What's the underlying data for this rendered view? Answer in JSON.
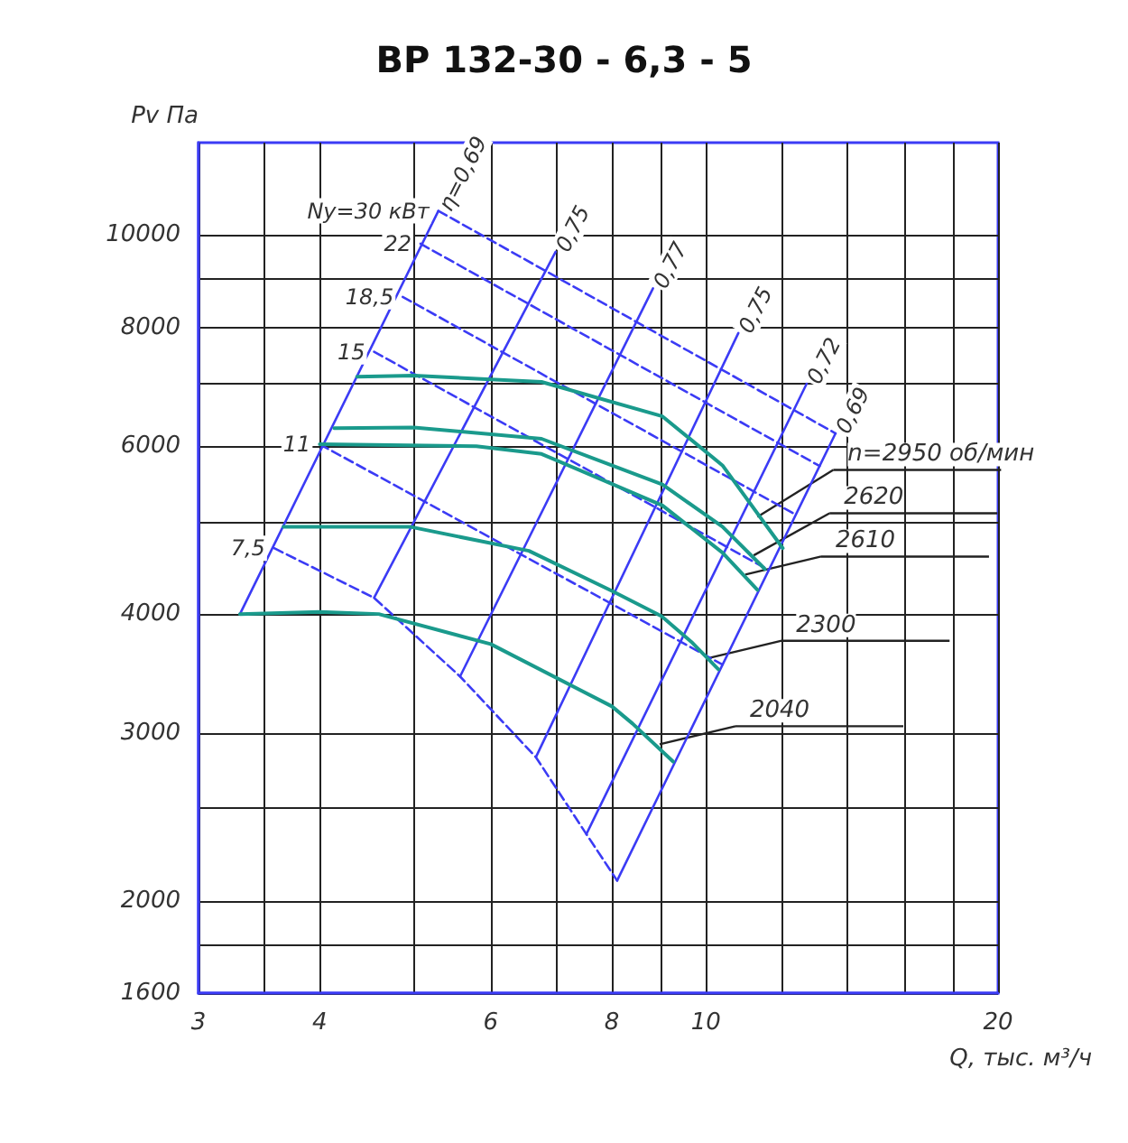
{
  "chart_data": {
    "type": "line",
    "title": "ВР 132-30 - 6,3 - 5",
    "xlabel": "Q, тыс. м³/ч",
    "ylabel": "Pv Па",
    "log": "xy",
    "grid": true,
    "xlim": [
      3,
      20
    ],
    "xticks": [
      3,
      {
        "value": 3.5,
        "label": null
      },
      4,
      {
        "value": 5,
        "label": null
      },
      6,
      {
        "value": 7,
        "label": null
      },
      8,
      {
        "value": 9,
        "label": null
      },
      10,
      {
        "value": 12,
        "label": null
      },
      {
        "value": 14,
        "label": null
      },
      {
        "value": 16,
        "label": null
      },
      {
        "value": 18,
        "label": null
      },
      20
    ],
    "ylim": [
      1600,
      12500
    ],
    "yticks": [
      1600,
      {
        "value": 1800,
        "label": null
      },
      2000,
      {
        "value": 2500,
        "label": null
      },
      3000,
      4000,
      {
        "value": 5000,
        "label": null
      },
      6000,
      {
        "value": 7000,
        "label": null
      },
      8000,
      {
        "value": 9000,
        "label": null
      },
      10000
    ],
    "series": [
      {
        "color": "#1a9a8c",
        "x": [
          4.37,
          5.0,
          6.77,
          9.02,
          10.4,
          12.0
        ],
        "values": [
          7100,
          7120,
          7010,
          6450,
          5730,
          4690
        ]
      },
      {
        "color": "#1a9a8c",
        "x": [
          4.14,
          5.0,
          6.77,
          9.02,
          10.4,
          11.5
        ],
        "values": [
          6270,
          6280,
          6110,
          5470,
          4940,
          4460
        ]
      },
      {
        "color": "#1a9a8c",
        "x": [
          4.0,
          5.8,
          6.77,
          9.02,
          10.4,
          11.3
        ],
        "values": [
          6030,
          6000,
          5890,
          5200,
          4640,
          4240
        ]
      },
      {
        "color": "#1a9a8c",
        "x": [
          3.67,
          4.95,
          6.57,
          8.0,
          9.0,
          9.66,
          10.3
        ],
        "values": [
          4940,
          4940,
          4660,
          4230,
          3980,
          3740,
          3500
        ]
      },
      {
        "color": "#1a9a8c",
        "x": [
          3.31,
          4.0,
          4.6,
          6.0,
          8.0,
          8.4,
          9.25
        ],
        "values": [
          4000,
          4020,
          4000,
          3720,
          3200,
          3070,
          2800
        ]
      },
      {
        "name": "η=0,69",
        "color": "#3b3bf5",
        "line_style": "solid",
        "x": [
          3.31,
          5.3
        ],
        "values": [
          4000,
          10600
        ]
      },
      {
        "name": "0,75",
        "color": "#3b3bf5",
        "line_style": "solid",
        "x": [
          4.55,
          7.0
        ],
        "values": [
          4160,
          9600
        ]
      },
      {
        "name": "0,77",
        "color": "#3b3bf5",
        "line_style": "solid",
        "x": [
          5.58,
          8.82
        ],
        "values": [
          3440,
          8790
        ]
      },
      {
        "name": "0,75",
        "color": "#3b3bf5",
        "line_style": "solid",
        "x": [
          6.68,
          10.8
        ],
        "values": [
          2830,
          7890
        ]
      },
      {
        "name": "0,72",
        "color": "#3b3bf5",
        "line_style": "solid",
        "x": [
          7.53,
          12.7
        ],
        "values": [
          2350,
          6980
        ]
      },
      {
        "name": "0,69",
        "color": "#3b3bf5",
        "line_style": "solid",
        "x": [
          8.1,
          13.6
        ],
        "values": [
          2100,
          6190
        ]
      },
      {
        "name": "Nу=30 кВт",
        "color": "#3b3bf5",
        "line_style": "dashed",
        "x": [
          5.3,
          13.6
        ],
        "values": [
          10600,
          6190
        ]
      },
      {
        "name": "22",
        "color": "#3b3bf5",
        "line_style": "dashed",
        "x": [
          5.08,
          13.1
        ],
        "values": [
          9790,
          5720
        ]
      },
      {
        "name": "18,5",
        "color": "#3b3bf5",
        "line_style": "dashed",
        "x": [
          4.87,
          12.4
        ],
        "values": [
          8610,
          5080
        ]
      },
      {
        "name": "15",
        "color": "#3b3bf5",
        "line_style": "dashed",
        "x": [
          4.55,
          11.6
        ],
        "values": [
          7540,
          4450
        ]
      },
      {
        "name": "11",
        "color": "#3b3bf5",
        "line_style": "dashed",
        "x": [
          4.0,
          10.4
        ],
        "values": [
          6030,
          3540
        ]
      },
      {
        "name": "7,5",
        "color": "#3b3bf5",
        "line_style": "dashed",
        "x": [
          3.59,
          4.55,
          5.58,
          6.68,
          7.53,
          8.1
        ],
        "values": [
          4690,
          4160,
          3440,
          2830,
          2350,
          2100
        ]
      }
    ],
    "annotations": [
      {
        "text": "n=2950 об/мин",
        "x": 11.3,
        "y": 5060
      },
      {
        "text": "2620",
        "x": 11.2,
        "y": 4610
      },
      {
        "text": "2610",
        "x": 10.98,
        "y": 4400
      },
      {
        "text": "2300",
        "x": 10.0,
        "y": 3590
      },
      {
        "text": "2040",
        "x": 8.96,
        "y": 2920
      }
    ]
  }
}
